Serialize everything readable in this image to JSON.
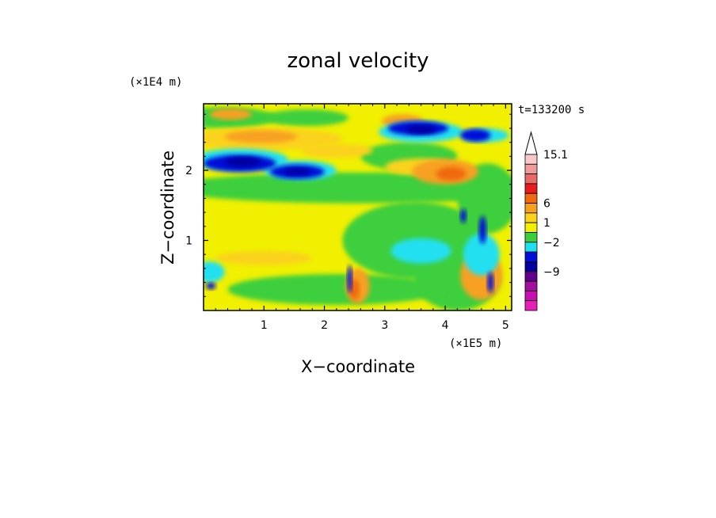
{
  "chart_data": {
    "type": "heatmap",
    "title": "zonal velocity",
    "xlabel": "X−coordinate",
    "ylabel": "Z−coordinate",
    "x_scale_label": "(×1E5 m)",
    "y_scale_label": "(×1E4 m)",
    "time_label": "t=133200 s",
    "xlim": [
      0,
      5.1
    ],
    "ylim": [
      0,
      2.95
    ],
    "xticks": [
      "1",
      "2",
      "3",
      "4",
      "5"
    ],
    "yticks": [
      "1",
      "2"
    ],
    "colorbar": {
      "labels": [
        "15.1",
        "6",
        "1",
        "−2",
        "−9"
      ],
      "levels_top_to_bottom": [
        "#f9c8c8",
        "#f09a9a",
        "#e86a6a",
        "#e81c1c",
        "#f06a10",
        "#f7a020",
        "#fbd21c",
        "#f0f000",
        "#3ccf3c",
        "#20e0f0",
        "#0010d8",
        "#0000a0",
        "#60008c",
        "#a0109c",
        "#c810b0",
        "#e820b8"
      ],
      "extend_max": true
    },
    "features": [
      {
        "name": "strong westerly jet",
        "x": 0.9,
        "z": 2.45,
        "level": "#f06a10"
      },
      {
        "name": "upper easterly core",
        "x": 0.6,
        "z": 2.1,
        "level": "#0000a0"
      },
      {
        "name": "upper easterly core",
        "x": 1.6,
        "z": 1.98,
        "level": "#0000a0"
      },
      {
        "name": "upper easterly core",
        "x": 3.6,
        "z": 2.6,
        "level": "#0000a0"
      },
      {
        "name": "upper easterly core",
        "x": 4.55,
        "z": 2.5,
        "level": "#0010d8"
      },
      {
        "name": "westerly band",
        "x": 4.0,
        "z": 2.0,
        "level": "#f06a10"
      },
      {
        "name": "wave train",
        "x": 4.6,
        "z": 1.0,
        "level": "#0010d8"
      },
      {
        "name": "surface jet",
        "x": 2.45,
        "z": 0.3,
        "level": "#f06a10"
      }
    ]
  }
}
